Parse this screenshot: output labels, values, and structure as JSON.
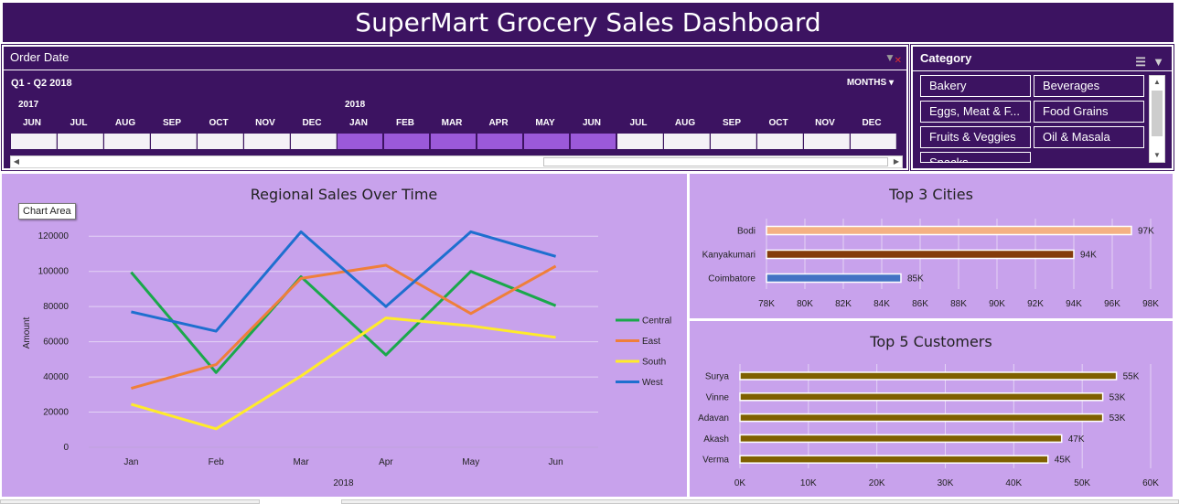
{
  "dashboard": {
    "title": "SuperMart Grocery Sales Dashboard"
  },
  "timeline": {
    "header": "Order Date",
    "range_label": "Q1 - Q2 2018",
    "level_label": "MONTHS",
    "years": [
      "2017",
      "2018"
    ],
    "months": [
      "JUN",
      "JUL",
      "AUG",
      "SEP",
      "OCT",
      "NOV",
      "DEC",
      "JAN",
      "FEB",
      "MAR",
      "APR",
      "MAY",
      "JUN",
      "JUL",
      "AUG",
      "SEP",
      "OCT",
      "NOV",
      "DEC"
    ],
    "selected": [
      false,
      false,
      false,
      false,
      false,
      false,
      false,
      true,
      true,
      true,
      true,
      true,
      true,
      false,
      false,
      false,
      false,
      false,
      false
    ],
    "selected_color": "#9b59d9"
  },
  "category": {
    "header": "Category",
    "items": [
      "Bakery",
      "Beverages",
      "Eggs, Meat & F...",
      "Food Grains",
      "Fruits & Veggies",
      "Oil & Masala",
      "Snacks"
    ]
  },
  "colors": {
    "header_bg": "#3c1361",
    "chart_bg": "#c8a2ec"
  },
  "tooltip": "Chart Area",
  "chart_data": [
    {
      "type": "line",
      "title": "Regional Sales Over Time",
      "categories": [
        "Jan",
        "Feb",
        "Mar",
        "Apr",
        "May",
        "Jun"
      ],
      "xlabel": "2018",
      "ylabel": "Amount",
      "ylim": [
        0,
        130000
      ],
      "yticks": [
        0,
        20000,
        40000,
        60000,
        80000,
        100000,
        120000
      ],
      "legend_position": "right",
      "series": [
        {
          "name": "Central",
          "color": "#1aa84b",
          "values": [
            99500,
            42500,
            97000,
            52500,
            100000,
            80500
          ]
        },
        {
          "name": "East",
          "color": "#ef7f3a",
          "values": [
            33500,
            47000,
            96000,
            103500,
            76000,
            103000
          ]
        },
        {
          "name": "South",
          "color": "#ffeb2a",
          "values": [
            24500,
            10500,
            40500,
            73500,
            69000,
            62500
          ]
        },
        {
          "name": "West",
          "color": "#1e6fcf",
          "values": [
            77000,
            66000,
            122500,
            80000,
            122500,
            108500
          ]
        }
      ]
    },
    {
      "type": "bar",
      "orientation": "horizontal",
      "title": "Top 3 Cities",
      "categories": [
        "Bodi",
        "Kanyakumari",
        "Coimbatore"
      ],
      "values": [
        97000,
        94000,
        85000
      ],
      "data_labels": [
        "97K",
        "94K",
        "85K"
      ],
      "colors": [
        "#f4b183",
        "#843c0c",
        "#4472c4"
      ],
      "xlim": [
        78000,
        98000
      ],
      "xticks": [
        "78K",
        "80K",
        "82K",
        "84K",
        "86K",
        "88K",
        "90K",
        "92K",
        "94K",
        "96K",
        "98K"
      ]
    },
    {
      "type": "bar",
      "orientation": "horizontal",
      "title": "Top 5 Customers",
      "categories": [
        "Surya",
        "Vinne",
        "Adavan",
        "Akash",
        "Verma"
      ],
      "values": [
        55000,
        53000,
        53000,
        47000,
        45000
      ],
      "data_labels": [
        "55K",
        "53K",
        "53K",
        "47K",
        "45K"
      ],
      "colors": [
        "#7f6000",
        "#7f6000",
        "#7f6000",
        "#7f6000",
        "#7f6000"
      ],
      "xlim": [
        0,
        60000
      ],
      "xticks": [
        "0K",
        "10K",
        "20K",
        "30K",
        "40K",
        "50K",
        "60K"
      ]
    }
  ]
}
